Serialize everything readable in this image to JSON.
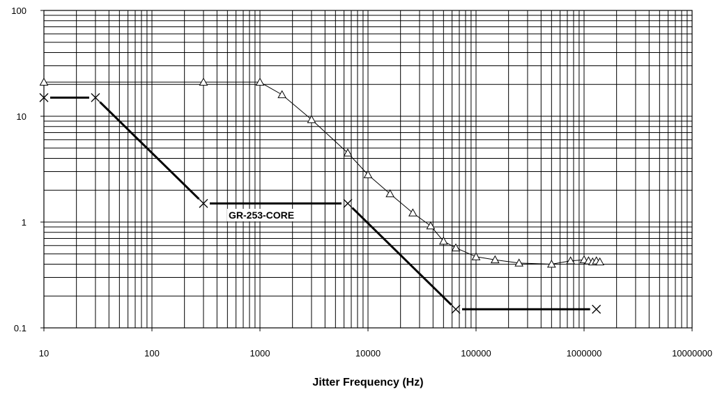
{
  "chart_data": {
    "type": "line",
    "title": "",
    "xlabel": "Jitter Frequency (Hz)",
    "ylabel": "",
    "x_scale": "log",
    "y_scale": "log",
    "xlim": [
      10,
      10000000
    ],
    "ylim": [
      0.1,
      100
    ],
    "x_tick_labels": [
      "10",
      "100",
      "1000",
      "10000",
      "100000",
      "1000000",
      "10000000"
    ],
    "y_tick_labels": [
      "0.1",
      "1",
      "10",
      "100"
    ],
    "grid": true,
    "legend": "none",
    "annotations": [
      {
        "text": "GR-253-CORE"
      }
    ],
    "series": [
      {
        "marker": "triangle",
        "line_style": "thin",
        "x": [
          10,
          300,
          1000,
          1600,
          3000,
          6500,
          10000,
          16000,
          26000,
          38000,
          50000,
          65000,
          100000,
          150000,
          250000,
          500000,
          750000,
          1000000,
          1100000,
          1200000,
          1300000,
          1400000
        ],
        "y": [
          21,
          21,
          21,
          16,
          9.3,
          4.5,
          2.8,
          1.85,
          1.22,
          0.92,
          0.66,
          0.57,
          0.47,
          0.44,
          0.41,
          0.4,
          0.43,
          0.44,
          0.43,
          0.42,
          0.43,
          0.42
        ]
      },
      {
        "marker": "x",
        "line_style": "thick",
        "segments": [
          {
            "x": [
              10,
              30
            ],
            "y": [
              15,
              15
            ]
          },
          {
            "x": [
              30,
              300
            ],
            "y": [
              15,
              1.5
            ]
          },
          {
            "x": [
              300,
              6500
            ],
            "y": [
              1.5,
              1.5
            ]
          },
          {
            "x": [
              6500,
              65000
            ],
            "y": [
              1.5,
              0.15
            ]
          },
          {
            "x": [
              65000,
              1300000
            ],
            "y": [
              0.15,
              0.15
            ]
          }
        ],
        "x": [
          10,
          30,
          300,
          6500,
          65000,
          1300000
        ],
        "y": [
          15,
          15,
          1.5,
          1.5,
          0.15,
          0.15
        ]
      }
    ]
  }
}
